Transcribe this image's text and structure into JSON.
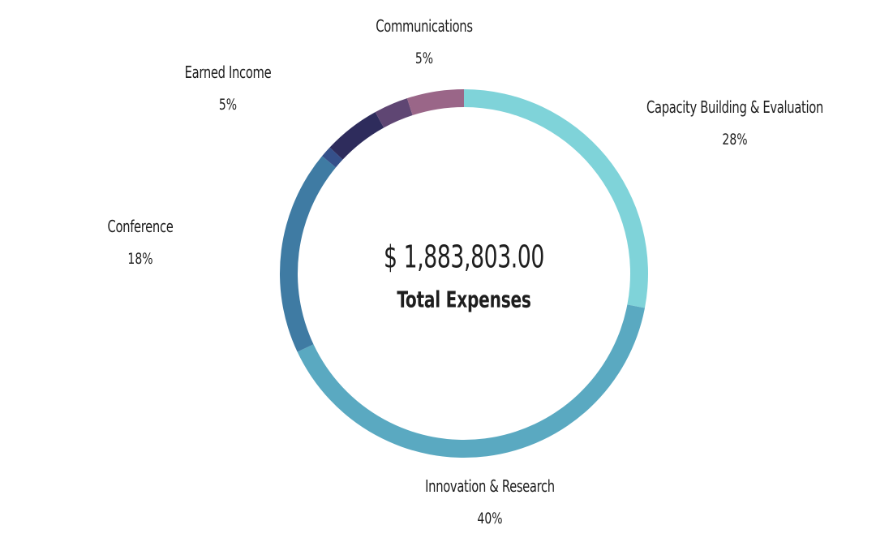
{
  "chart_data": {
    "type": "pie",
    "style": "donut",
    "title": "",
    "center_value": "$ 1,883,803.00",
    "center_caption": "Total Expenses",
    "slices": [
      {
        "name": "Capacity Building & Evaluation",
        "label": "28%",
        "value": 28,
        "color": "#7fd3d9"
      },
      {
        "name": "Innovation & Research",
        "label": "40%",
        "value": 40,
        "color": "#5aa9c1"
      },
      {
        "name": "Conference",
        "label": "18%",
        "value": 18,
        "color": "#3f7ba3"
      },
      {
        "name": "",
        "label": "",
        "value": 1,
        "color": "#35508a"
      },
      {
        "name": "Earned Income",
        "label": "5%",
        "value": 5,
        "color": "#2e2c5c"
      },
      {
        "name": "",
        "label": "",
        "value": 3,
        "color": "#5f4673"
      },
      {
        "name": "Communications",
        "label": "5%",
        "value": 5,
        "color": "#9a6688"
      }
    ]
  }
}
